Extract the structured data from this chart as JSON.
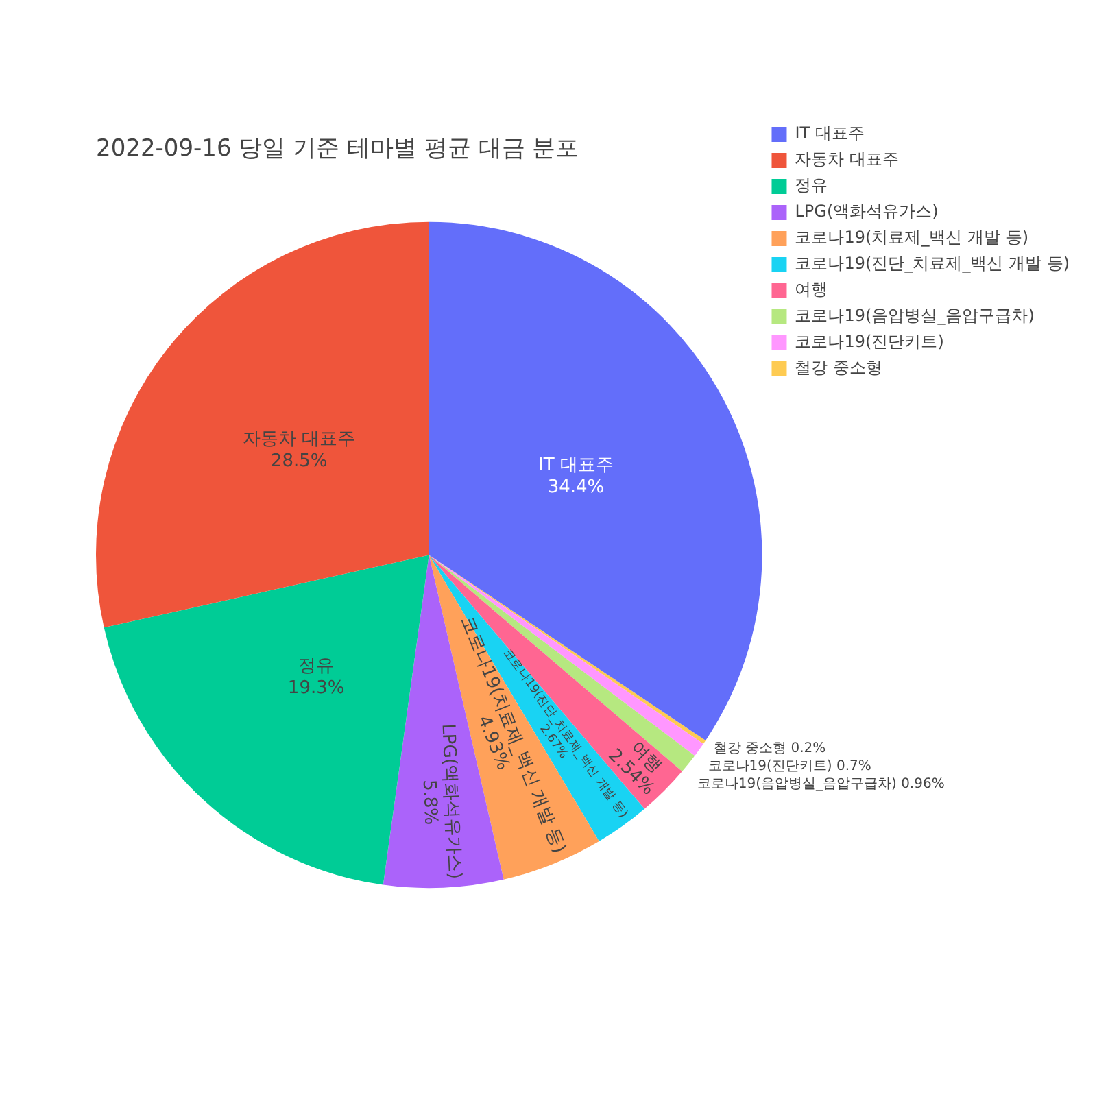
{
  "chart_data": {
    "type": "pie",
    "title": "2022-09-16 당일 기준 테마별 평균 대금 분포",
    "categories": [
      "IT 대표주",
      "자동차 대표주",
      "정유",
      "LPG(액화석유가스)",
      "코로나19(치료제_백신 개발 등)",
      "코로나19(진단_치료제_백신 개발 등)",
      "여행",
      "코로나19(음압병실_음압구급차)",
      "코로나19(진단키트)",
      "철강 중소형"
    ],
    "values": [
      34.4,
      28.5,
      19.3,
      5.8,
      4.93,
      2.67,
      2.54,
      0.96,
      0.7,
      0.2
    ],
    "colors": [
      "#636efa",
      "#ef553b",
      "#00cc96",
      "#ab63fa",
      "#ffa15a",
      "#19d3f3",
      "#ff6692",
      "#b6e880",
      "#ff97ff",
      "#fecb52"
    ],
    "value_labels": [
      "34.4%",
      "28.5%",
      "19.3%",
      "5.8%",
      "4.93%",
      "2.67%",
      "2.54%",
      "0.96%",
      "0.7%",
      "0.2%"
    ],
    "legend": "top right"
  }
}
